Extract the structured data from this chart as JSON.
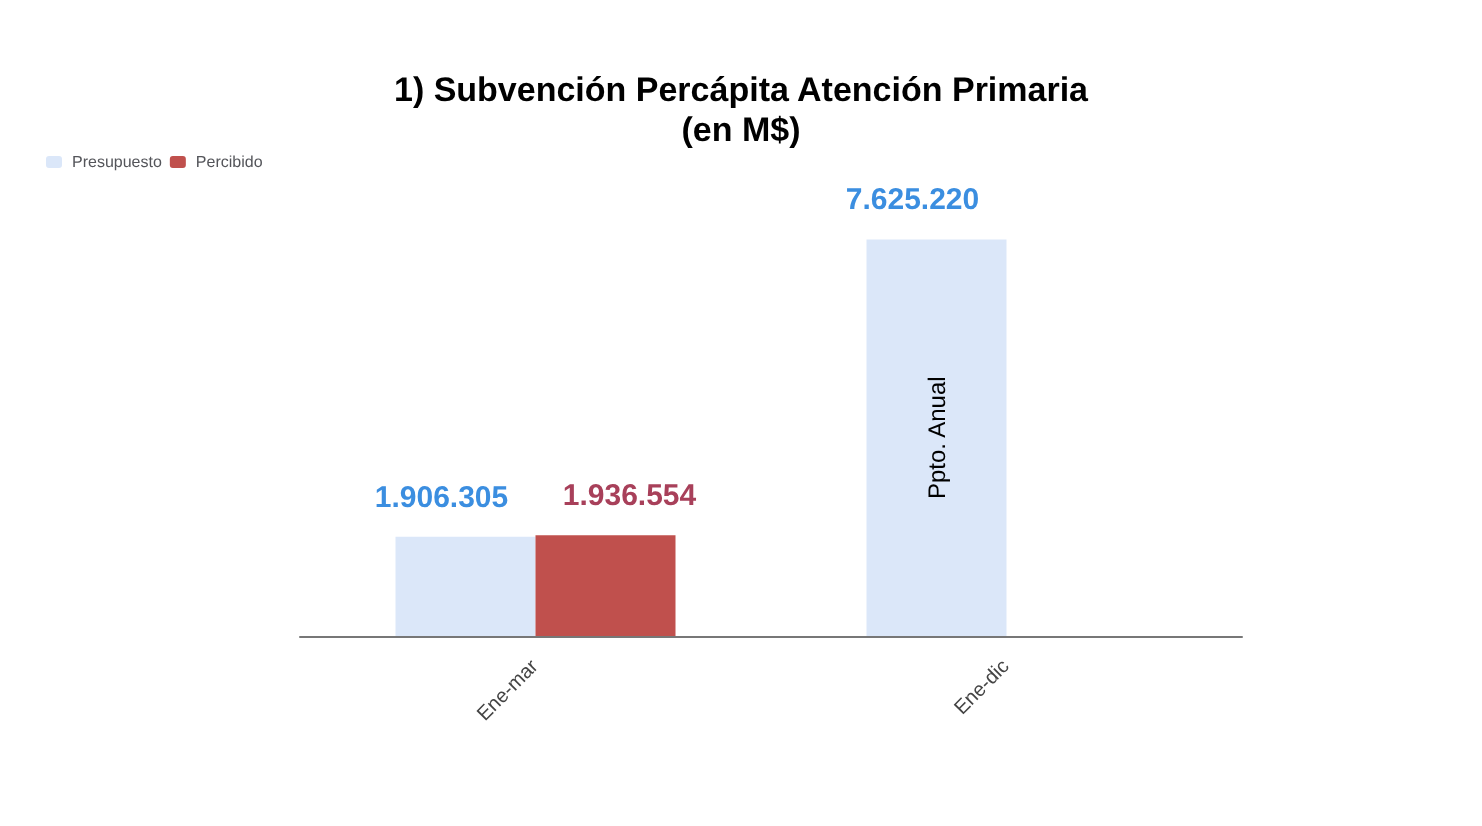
{
  "chart_data": {
    "type": "bar",
    "title": "1) Subvención Percápita Atención Primaria\n(en M$)",
    "categories": [
      "Ene-mar",
      "Ene-dic"
    ],
    "series": [
      {
        "name": "Presupuesto",
        "color": "#dbe7f9",
        "values": [
          1906305,
          7625220
        ],
        "value_labels": [
          "1.906.305",
          "7.625.220"
        ]
      },
      {
        "name": "Percibido",
        "color": "#c0504d",
        "values": [
          1936554,
          null
        ],
        "value_labels": [
          "1.936.554",
          null
        ]
      }
    ],
    "annotations": [
      "Ppto. Anual"
    ],
    "legend": "top left"
  }
}
